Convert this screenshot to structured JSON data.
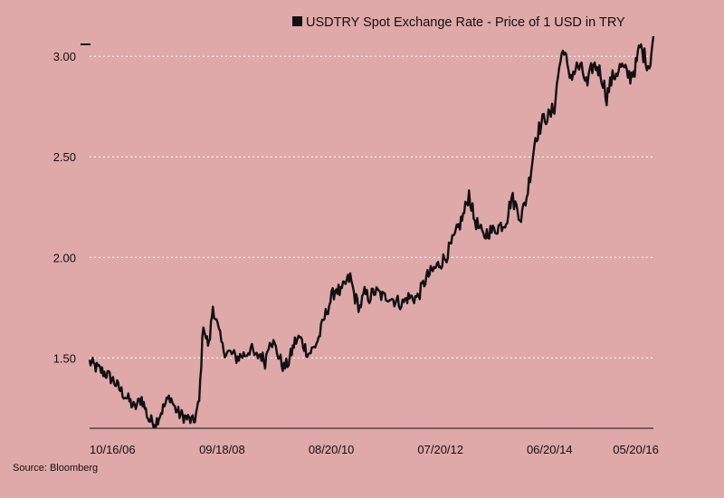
{
  "chart_data": {
    "type": "line",
    "title": "",
    "xlabel": "",
    "ylabel": "",
    "legend": {
      "position": "top-right",
      "entries": [
        {
          "name": "USDTRY Spot Exchange Rate - Price of 1 USD in TRY",
          "color": "#111111"
        }
      ]
    },
    "x_tick_labels": [
      "10/16/06",
      "09/18/08",
      "08/20/10",
      "07/20/12",
      "06/20/14",
      "05/20/16"
    ],
    "y_ticks": [
      1.5,
      2.0,
      2.5,
      3.0
    ],
    "y_tick_labels": [
      "1.50",
      "2.00",
      "2.50",
      "3.00"
    ],
    "ylim": [
      1.15,
      3.1
    ],
    "grid": {
      "horizontal": true,
      "style": "dotted",
      "color": "#FFFFFF"
    },
    "series": [
      {
        "name": "USDTRY Spot Exchange Rate - Price of 1 USD in TRY",
        "color": "#111111",
        "x": [
          "10/16/06",
          "12/01/06",
          "02/01/07",
          "03/15/07",
          "05/01/07",
          "06/15/07",
          "08/01/07",
          "09/15/07",
          "11/01/07",
          "12/15/07",
          "01/31/08",
          "03/15/08",
          "04/15/08",
          "05/15/08",
          "07/01/08",
          "08/15/08",
          "09/18/08",
          "10/15/08",
          "11/01/08",
          "11/20/08",
          "12/15/08",
          "01/15/09",
          "02/15/09",
          "03/10/09",
          "04/15/09",
          "05/15/09",
          "06/15/09",
          "07/15/09",
          "08/15/09",
          "09/15/09",
          "10/15/09",
          "11/15/09",
          "12/15/09",
          "01/15/10",
          "02/15/10",
          "03/15/10",
          "04/15/10",
          "05/25/10",
          "06/25/10",
          "08/20/10",
          "09/25/10",
          "10/25/10",
          "12/01/10",
          "01/15/11",
          "02/15/11",
          "03/15/11",
          "04/15/11",
          "05/15/11",
          "06/15/11",
          "07/15/11",
          "08/15/11",
          "09/15/11",
          "10/15/11",
          "11/15/11",
          "12/15/11",
          "01/15/12",
          "02/15/12",
          "03/15/12",
          "04/15/12",
          "05/15/12",
          "07/20/12",
          "09/15/12",
          "11/15/12",
          "01/15/13",
          "03/15/13",
          "05/15/13",
          "06/15/13",
          "07/15/13",
          "08/15/13",
          "09/15/13",
          "10/15/13",
          "11/15/13",
          "12/15/13",
          "01/26/14",
          "02/15/14",
          "03/15/14",
          "04/15/14",
          "05/15/14",
          "06/20/14",
          "07/20/14",
          "08/15/14",
          "09/15/14",
          "10/15/14",
          "11/15/14",
          "12/15/14",
          "01/15/15",
          "02/15/15",
          "03/15/15",
          "04/15/15",
          "05/15/15",
          "06/15/15",
          "07/15/15",
          "08/15/15",
          "09/15/15",
          "10/15/15",
          "11/15/15",
          "12/15/15",
          "01/15/16",
          "02/15/16",
          "03/15/16",
          "04/15/16",
          "05/20/16",
          "06/15/16",
          "07/15/16",
          "08/15/16",
          "09/10/16"
        ],
        "y": [
          1.48,
          1.45,
          1.42,
          1.39,
          1.34,
          1.3,
          1.25,
          1.3,
          1.19,
          1.18,
          1.25,
          1.31,
          1.25,
          1.22,
          1.2,
          1.18,
          1.28,
          1.68,
          1.6,
          1.56,
          1.76,
          1.65,
          1.55,
          1.53,
          1.52,
          1.5,
          1.51,
          1.52,
          1.55,
          1.5,
          1.52,
          1.48,
          1.6,
          1.56,
          1.5,
          1.45,
          1.48,
          1.58,
          1.6,
          1.52,
          1.55,
          1.6,
          1.7,
          1.8,
          1.85,
          1.82,
          1.87,
          1.9,
          1.8,
          1.75,
          1.82,
          1.8,
          1.83,
          1.82,
          1.8,
          1.81,
          1.79,
          1.78,
          1.77,
          1.8,
          1.8,
          1.9,
          1.95,
          2.0,
          2.1,
          2.22,
          2.32,
          2.2,
          2.15,
          2.1,
          2.13,
          2.13,
          2.15,
          2.17,
          2.2,
          2.3,
          2.25,
          2.2,
          2.3,
          2.45,
          2.6,
          2.65,
          2.7,
          2.7,
          2.75,
          2.95,
          3.05,
          2.9,
          2.92,
          2.95,
          2.92,
          2.85,
          2.95,
          2.95,
          2.9,
          2.8,
          2.88,
          2.92,
          2.95,
          2.92,
          2.9,
          2.95,
          3.05,
          3.0,
          2.95,
          3.1
        ]
      }
    ],
    "source": "Source: Bloomberg"
  }
}
